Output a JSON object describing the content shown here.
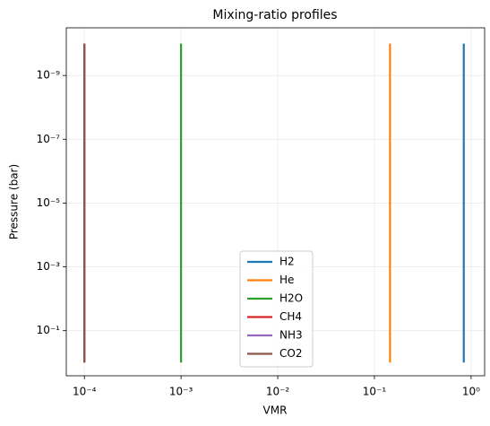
{
  "chart_data": {
    "type": "line",
    "title": "Mixing-ratio profiles",
    "x_label": "VMR",
    "y_label": "Pressure (bar)",
    "y": [
      1e-10,
      1
    ],
    "series": [
      {
        "name": "H2",
        "color": "#1f77b4",
        "values": [
          0.84,
          0.84
        ]
      },
      {
        "name": "He",
        "color": "#ff7f0e",
        "values": [
          0.145,
          0.145
        ]
      },
      {
        "name": "H2O",
        "color": "#2ca02c",
        "values": [
          0.001,
          0.001
        ]
      },
      {
        "name": "CH4",
        "color": "#d62728",
        "values": [
          0.0001,
          0.0001
        ]
      },
      {
        "name": "NH3",
        "color": "#9467bd",
        "values": [
          0.0001,
          0.0001
        ]
      },
      {
        "name": "CO2",
        "color": "#8c564b",
        "values": [
          0.0001,
          0.0001
        ]
      }
    ],
    "x_scale": "log",
    "y_scale": "log",
    "xlim": [
      6.5e-05,
      1.38
    ],
    "ylim": [
      2.6,
      3.2e-11
    ],
    "xticks": [
      {
        "value": 0.0001,
        "label": "10⁻⁴"
      },
      {
        "value": 0.001,
        "label": "10⁻³"
      },
      {
        "value": 0.01,
        "label": "10⁻²"
      },
      {
        "value": 0.1,
        "label": "10⁻¹"
      },
      {
        "value": 1,
        "label": "10⁰"
      }
    ],
    "yticks": [
      {
        "value": 1e-09,
        "label": "10⁻⁹"
      },
      {
        "value": 1e-07,
        "label": "10⁻⁷"
      },
      {
        "value": 1e-05,
        "label": "10⁻⁵"
      },
      {
        "value": 0.001,
        "label": "10⁻³"
      },
      {
        "value": 0.1,
        "label": "10⁻¹"
      }
    ],
    "grid": true,
    "legend_loc": "lower center"
  }
}
